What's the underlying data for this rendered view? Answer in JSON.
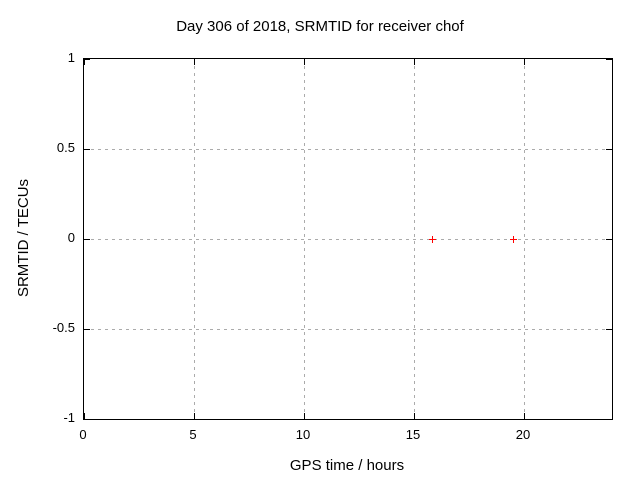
{
  "chart_data": {
    "type": "scatter",
    "title": "Day 306 of 2018, SRMTID for receiver chof",
    "xlabel": "GPS time / hours",
    "ylabel": "SRMTID / TECUs",
    "xlim": [
      0,
      24
    ],
    "ylim": [
      -1,
      1
    ],
    "xticks": [
      {
        "value": 0,
        "label": "0"
      },
      {
        "value": 5,
        "label": "5"
      },
      {
        "value": 10,
        "label": "10"
      },
      {
        "value": 15,
        "label": "15"
      },
      {
        "value": 20,
        "label": "20"
      }
    ],
    "yticks": [
      {
        "value": 1,
        "label": "1"
      },
      {
        "value": 0.5,
        "label": "0.5"
      },
      {
        "value": 0,
        "label": "0"
      },
      {
        "value": -0.5,
        "label": "-0.5"
      },
      {
        "value": -1,
        "label": "-1"
      }
    ],
    "grid": true,
    "legend_position": "none",
    "series": [
      {
        "name": "SRMTID",
        "marker": "plus",
        "color": "#ff0000",
        "points": [
          {
            "x": 15.8,
            "y": 0
          },
          {
            "x": 19.5,
            "y": 0
          }
        ]
      }
    ]
  },
  "colors": {
    "background": "#ffffff",
    "border": "#000000",
    "grid": "#ababab",
    "text": "#000000"
  }
}
